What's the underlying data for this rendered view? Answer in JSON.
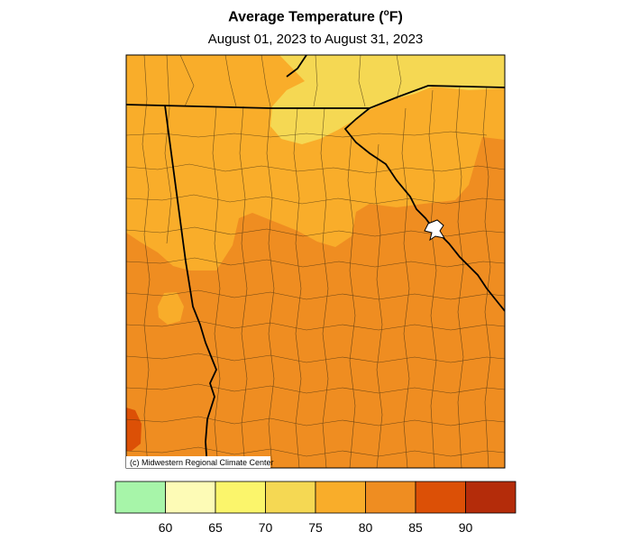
{
  "title": {
    "main": "Average Temperature (",
    "degree": "o",
    "unit": "F)"
  },
  "subtitle": "August 01, 2023 to August 31, 2023",
  "copyright": "(c) Midwestern Regional Climate Center",
  "legend": {
    "colors": [
      "#a7f5a9",
      "#fdfbb6",
      "#fbf56b",
      "#f5d853",
      "#f9ad2a",
      "#ef8d21",
      "#dc5006",
      "#b42c0a"
    ],
    "ticks": [
      "60",
      "65",
      "70",
      "75",
      "80",
      "85",
      "90"
    ]
  }
}
